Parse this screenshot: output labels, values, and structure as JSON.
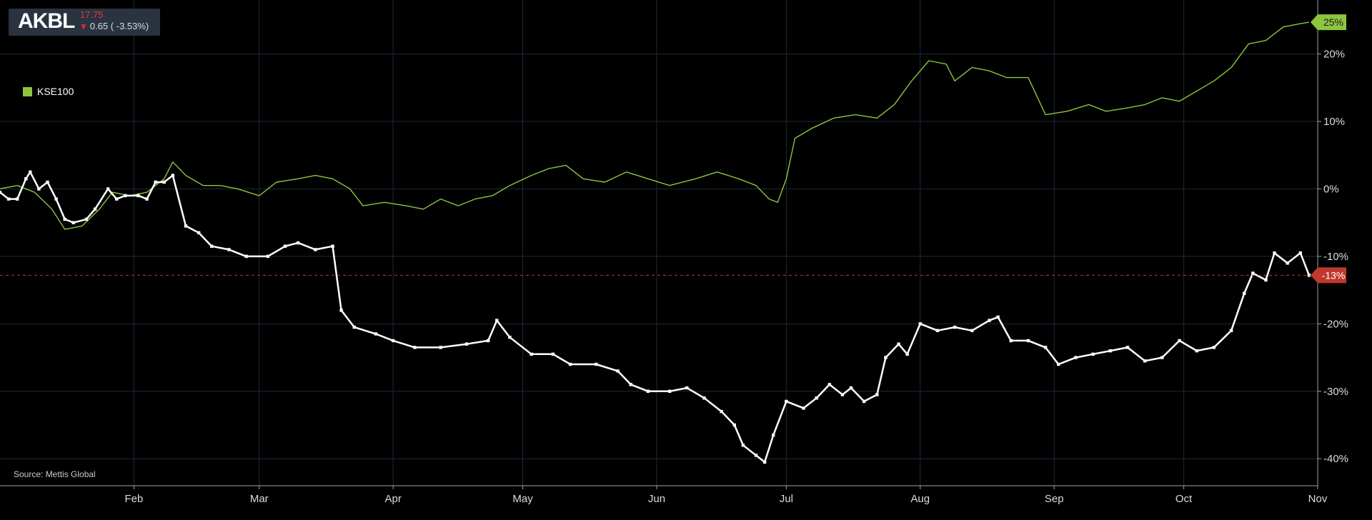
{
  "header": {
    "ticker": "AKBL",
    "price": "17.75",
    "change": "0.65 ( -3.53%)",
    "direction_icon": "arrow-down-icon"
  },
  "legend": {
    "label": "KSE100",
    "color": "#8cc63f"
  },
  "source": "Source: Mettis Global",
  "colors": {
    "background": "#000000",
    "grid": "#1e2a3a",
    "stock_line": "#ffffff",
    "index_line": "#8cc63f",
    "last_value_line": "#c0392b",
    "index_tag": "#8cc63f",
    "stock_tag": "#c0392b"
  },
  "chart_data": {
    "type": "line",
    "y_unit": "%",
    "y_ticks": [
      "20%",
      "10%",
      "0%",
      "-10%",
      "-20%",
      "-30%",
      "-40%"
    ],
    "ylim": [
      -44,
      28
    ],
    "x_tick_labels": [
      "Feb",
      "Mar",
      "Apr",
      "May",
      "Jun",
      "Jul",
      "Aug",
      "Sep",
      "Oct",
      "Nov"
    ],
    "x_tick_dates": [
      "2024-02-01",
      "2024-03-01",
      "2024-04-01",
      "2024-05-01",
      "2024-06-01",
      "2024-07-01",
      "2024-08-01",
      "2024-09-01",
      "2024-10-01",
      "2024-11-01"
    ],
    "xlim": [
      "2024-01-01",
      "2024-11-01"
    ],
    "grid": true,
    "legend_position": "top-left",
    "series": [
      {
        "name": "KSE100",
        "color": "#8cc63f",
        "markers": false,
        "last_value_label": "25%",
        "points": [
          [
            "2024-01-01",
            0.0
          ],
          [
            "2024-01-05",
            0.5
          ],
          [
            "2024-01-09",
            -0.5
          ],
          [
            "2024-01-13",
            -3.0
          ],
          [
            "2024-01-16",
            -6.0
          ],
          [
            "2024-01-20",
            -5.5
          ],
          [
            "2024-01-24",
            -3.0
          ],
          [
            "2024-01-27",
            -0.5
          ],
          [
            "2024-01-31",
            -1.0
          ],
          [
            "2024-02-04",
            -0.5
          ],
          [
            "2024-02-08",
            1.5
          ],
          [
            "2024-02-10",
            4.0
          ],
          [
            "2024-02-13",
            2.0
          ],
          [
            "2024-02-17",
            0.5
          ],
          [
            "2024-02-21",
            0.5
          ],
          [
            "2024-02-25",
            0.0
          ],
          [
            "2024-03-01",
            -1.0
          ],
          [
            "2024-03-05",
            1.0
          ],
          [
            "2024-03-10",
            1.5
          ],
          [
            "2024-03-14",
            2.0
          ],
          [
            "2024-03-18",
            1.5
          ],
          [
            "2024-03-22",
            0.0
          ],
          [
            "2024-03-25",
            -2.5
          ],
          [
            "2024-03-30",
            -2.0
          ],
          [
            "2024-04-04",
            -2.5
          ],
          [
            "2024-04-08",
            -3.0
          ],
          [
            "2024-04-12",
            -1.5
          ],
          [
            "2024-04-16",
            -2.5
          ],
          [
            "2024-04-20",
            -1.5
          ],
          [
            "2024-04-24",
            -1.0
          ],
          [
            "2024-04-28",
            0.5
          ],
          [
            "2024-05-03",
            2.0
          ],
          [
            "2024-05-07",
            3.0
          ],
          [
            "2024-05-11",
            3.5
          ],
          [
            "2024-05-15",
            1.5
          ],
          [
            "2024-05-20",
            1.0
          ],
          [
            "2024-05-25",
            2.5
          ],
          [
            "2024-05-30",
            1.5
          ],
          [
            "2024-06-04",
            0.5
          ],
          [
            "2024-06-10",
            1.5
          ],
          [
            "2024-06-15",
            2.5
          ],
          [
            "2024-06-20",
            1.5
          ],
          [
            "2024-06-24",
            0.5
          ],
          [
            "2024-06-27",
            -1.5
          ],
          [
            "2024-06-29",
            -2.0
          ],
          [
            "2024-07-01",
            1.5
          ],
          [
            "2024-07-03",
            7.5
          ],
          [
            "2024-07-07",
            9.0
          ],
          [
            "2024-07-12",
            10.5
          ],
          [
            "2024-07-17",
            11.0
          ],
          [
            "2024-07-22",
            10.5
          ],
          [
            "2024-07-26",
            12.5
          ],
          [
            "2024-07-30",
            16.0
          ],
          [
            "2024-08-03",
            19.0
          ],
          [
            "2024-08-07",
            18.5
          ],
          [
            "2024-08-09",
            16.0
          ],
          [
            "2024-08-13",
            18.0
          ],
          [
            "2024-08-17",
            17.5
          ],
          [
            "2024-08-21",
            16.5
          ],
          [
            "2024-08-26",
            16.5
          ],
          [
            "2024-08-30",
            11.0
          ],
          [
            "2024-09-04",
            11.5
          ],
          [
            "2024-09-09",
            12.5
          ],
          [
            "2024-09-13",
            11.5
          ],
          [
            "2024-09-18",
            12.0
          ],
          [
            "2024-09-22",
            12.5
          ],
          [
            "2024-09-26",
            13.5
          ],
          [
            "2024-09-30",
            13.0
          ],
          [
            "2024-10-04",
            14.5
          ],
          [
            "2024-10-08",
            16.0
          ],
          [
            "2024-10-12",
            18.0
          ],
          [
            "2024-10-16",
            21.5
          ],
          [
            "2024-10-20",
            22.0
          ],
          [
            "2024-10-24",
            24.0
          ],
          [
            "2024-10-28",
            24.5
          ],
          [
            "2024-10-30",
            24.7
          ]
        ]
      },
      {
        "name": "AKBL",
        "color": "#ffffff",
        "markers": true,
        "last_value_label": "-13%",
        "points": [
          [
            "2024-01-01",
            -0.5
          ],
          [
            "2024-01-03",
            -1.5
          ],
          [
            "2024-01-05",
            -1.5
          ],
          [
            "2024-01-07",
            1.5
          ],
          [
            "2024-01-08",
            2.5
          ],
          [
            "2024-01-10",
            0.0
          ],
          [
            "2024-01-12",
            1.0
          ],
          [
            "2024-01-14",
            -1.5
          ],
          [
            "2024-01-16",
            -4.5
          ],
          [
            "2024-01-18",
            -5.0
          ],
          [
            "2024-01-21",
            -4.5
          ],
          [
            "2024-01-23",
            -3.0
          ],
          [
            "2024-01-26",
            0.0
          ],
          [
            "2024-01-28",
            -1.5
          ],
          [
            "2024-01-30",
            -1.0
          ],
          [
            "2024-02-02",
            -1.0
          ],
          [
            "2024-02-04",
            -1.5
          ],
          [
            "2024-02-06",
            1.0
          ],
          [
            "2024-02-08",
            1.0
          ],
          [
            "2024-02-10",
            2.0
          ],
          [
            "2024-02-13",
            -5.5
          ],
          [
            "2024-02-16",
            -6.5
          ],
          [
            "2024-02-19",
            -8.5
          ],
          [
            "2024-02-23",
            -9.0
          ],
          [
            "2024-02-27",
            -10.0
          ],
          [
            "2024-03-03",
            -10.0
          ],
          [
            "2024-03-07",
            -8.5
          ],
          [
            "2024-03-10",
            -8.0
          ],
          [
            "2024-03-14",
            -9.0
          ],
          [
            "2024-03-18",
            -8.5
          ],
          [
            "2024-03-20",
            -18.0
          ],
          [
            "2024-03-23",
            -20.5
          ],
          [
            "2024-03-28",
            -21.5
          ],
          [
            "2024-04-01",
            -22.5
          ],
          [
            "2024-04-06",
            -23.5
          ],
          [
            "2024-04-12",
            -23.5
          ],
          [
            "2024-04-18",
            -23.0
          ],
          [
            "2024-04-23",
            -22.5
          ],
          [
            "2024-04-25",
            -19.5
          ],
          [
            "2024-04-28",
            -22.0
          ],
          [
            "2024-05-03",
            -24.5
          ],
          [
            "2024-05-08",
            -24.5
          ],
          [
            "2024-05-12",
            -26.0
          ],
          [
            "2024-05-18",
            -26.0
          ],
          [
            "2024-05-23",
            -27.0
          ],
          [
            "2024-05-26",
            -29.0
          ],
          [
            "2024-05-30",
            -30.0
          ],
          [
            "2024-06-04",
            -30.0
          ],
          [
            "2024-06-08",
            -29.5
          ],
          [
            "2024-06-12",
            -31.0
          ],
          [
            "2024-06-16",
            -33.0
          ],
          [
            "2024-06-19",
            -35.0
          ],
          [
            "2024-06-21",
            -38.0
          ],
          [
            "2024-06-24",
            -39.5
          ],
          [
            "2024-06-26",
            -40.5
          ],
          [
            "2024-06-28",
            -36.5
          ],
          [
            "2024-07-01",
            -31.5
          ],
          [
            "2024-07-05",
            -32.5
          ],
          [
            "2024-07-08",
            -31.0
          ],
          [
            "2024-07-11",
            -29.0
          ],
          [
            "2024-07-14",
            -30.5
          ],
          [
            "2024-07-16",
            -29.5
          ],
          [
            "2024-07-19",
            -31.5
          ],
          [
            "2024-07-22",
            -30.5
          ],
          [
            "2024-07-24",
            -25.0
          ],
          [
            "2024-07-27",
            -23.0
          ],
          [
            "2024-07-29",
            -24.5
          ],
          [
            "2024-08-01",
            -20.0
          ],
          [
            "2024-08-05",
            -21.0
          ],
          [
            "2024-08-09",
            -20.5
          ],
          [
            "2024-08-13",
            -21.0
          ],
          [
            "2024-08-17",
            -19.5
          ],
          [
            "2024-08-19",
            -19.0
          ],
          [
            "2024-08-22",
            -22.5
          ],
          [
            "2024-08-26",
            -22.5
          ],
          [
            "2024-08-30",
            -23.5
          ],
          [
            "2024-09-02",
            -26.0
          ],
          [
            "2024-09-06",
            -25.0
          ],
          [
            "2024-09-10",
            -24.5
          ],
          [
            "2024-09-14",
            -24.0
          ],
          [
            "2024-09-18",
            -23.5
          ],
          [
            "2024-09-22",
            -25.5
          ],
          [
            "2024-09-26",
            -25.0
          ],
          [
            "2024-09-30",
            -22.5
          ],
          [
            "2024-10-04",
            -24.0
          ],
          [
            "2024-10-08",
            -23.5
          ],
          [
            "2024-10-12",
            -21.0
          ],
          [
            "2024-10-15",
            -15.5
          ],
          [
            "2024-10-17",
            -12.5
          ],
          [
            "2024-10-20",
            -13.5
          ],
          [
            "2024-10-22",
            -9.5
          ],
          [
            "2024-10-25",
            -11.0
          ],
          [
            "2024-10-28",
            -9.5
          ],
          [
            "2024-10-30",
            -12.8
          ]
        ]
      }
    ]
  }
}
